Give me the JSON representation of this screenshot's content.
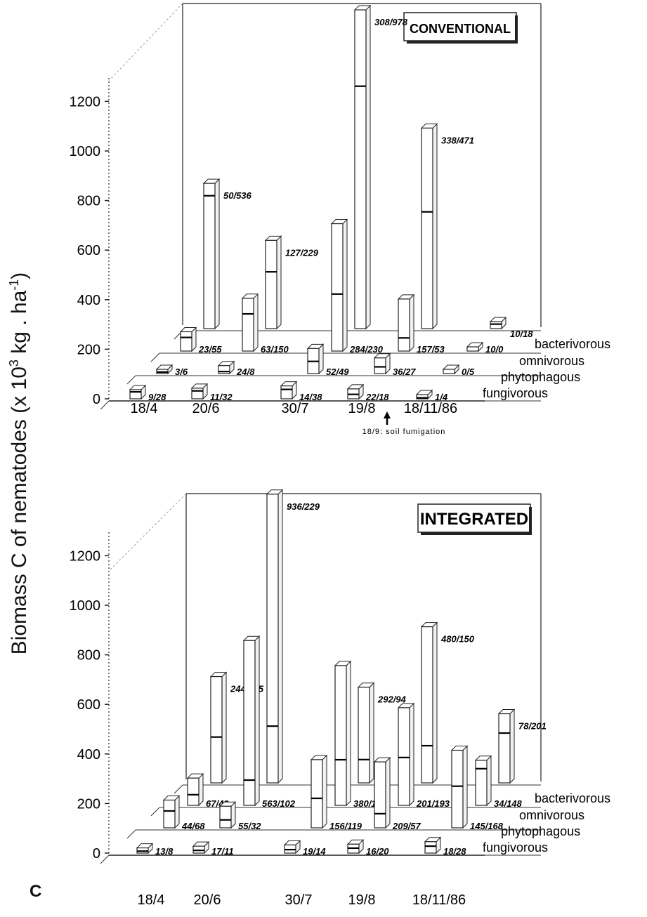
{
  "ylabel_main": "Biomass C of nematodes (x 10",
  "ylabel_sup": "3",
  "ylabel_mid": " kg . ha",
  "ylabel_sup2": "-1",
  "ylabel_end": ")",
  "panel_letter": "C",
  "annotation": "18/9: soil fumigation",
  "chart_data": [
    {
      "type": "bar",
      "title": "CONVENTIONAL",
      "categories": [
        "18/4",
        "20/6",
        "30/7",
        "19/8",
        "18/11/86"
      ],
      "rows": [
        "bacterivorous",
        "omnivorous",
        "phytophagous",
        "fungivorous"
      ],
      "yticks": [
        0,
        200,
        400,
        600,
        800,
        1000,
        1200
      ],
      "ylim": [
        0,
        1300
      ],
      "series": [
        {
          "name": "bacterivorous",
          "labels": [
            "50/536",
            "127/229",
            "308/978",
            "338/471",
            "10/18"
          ],
          "values": [
            586,
            356,
            1286,
            809,
            28
          ],
          "splits": [
            536,
            229,
            978,
            471,
            18
          ]
        },
        {
          "name": "omnivorous",
          "labels": [
            "23/55",
            "63/150",
            "284/230",
            "157/53",
            "10/0"
          ],
          "values": [
            78,
            213,
            514,
            210,
            10
          ],
          "splits": [
            55,
            150,
            230,
            53,
            0
          ]
        },
        {
          "name": "phytophagous",
          "labels": [
            "3/6",
            "24/8",
            "52/49",
            "36/27",
            "0/5"
          ],
          "values": [
            9,
            32,
            101,
            63,
            5
          ],
          "splits": [
            6,
            8,
            49,
            27,
            5
          ]
        },
        {
          "name": "fungivorous",
          "labels": [
            "9/28",
            "11/32",
            "14/38",
            "22/18",
            "1/4"
          ],
          "values": [
            37,
            43,
            52,
            40,
            5
          ],
          "splits": [
            28,
            32,
            38,
            18,
            4
          ]
        }
      ]
    },
    {
      "type": "bar",
      "title": "INTEGRATED",
      "categories": [
        "18/4",
        "20/6",
        "30/7",
        "19/8",
        "18/11/86"
      ],
      "rows": [
        "bacterivorous",
        "omnivorous",
        "phytophagous",
        "fungivorous"
      ],
      "yticks": [
        0,
        200,
        400,
        600,
        800,
        1000,
        1200
      ],
      "ylim": [
        0,
        1300
      ],
      "series": [
        {
          "name": "bacterivorous",
          "labels": [
            "244/185",
            "936/229",
            "292/94",
            "480/150",
            "78/201"
          ],
          "values": [
            429,
            1165,
            386,
            630,
            279
          ],
          "splits": [
            185,
            229,
            94,
            150,
            201
          ]
        },
        {
          "name": "omnivorous",
          "labels": [
            "67/43",
            "563/102",
            "380/184",
            "201/193",
            "34/148"
          ],
          "values": [
            110,
            665,
            564,
            394,
            182
          ],
          "splits": [
            43,
            102,
            184,
            193,
            148
          ]
        },
        {
          "name": "phytophagous",
          "labels": [
            "44/68",
            "55/32",
            "156/119",
            "209/57",
            "145/168"
          ],
          "values": [
            112,
            87,
            275,
            266,
            313
          ],
          "splits": [
            68,
            32,
            119,
            57,
            168
          ]
        },
        {
          "name": "fungivorous",
          "labels": [
            "13/8",
            "17/11",
            "19/14",
            "16/20",
            "18/28"
          ],
          "values": [
            21,
            28,
            33,
            36,
            46
          ],
          "splits": [
            8,
            11,
            14,
            20,
            28
          ]
        }
      ]
    }
  ]
}
